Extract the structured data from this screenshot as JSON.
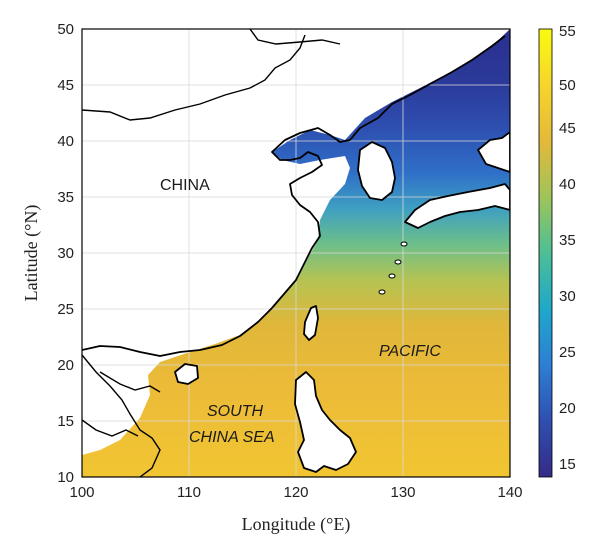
{
  "map": {
    "xlabel": "Longitude (°E)",
    "ylabel": "Latitude (°N)",
    "x_ticks": [
      "100",
      "110",
      "120",
      "130",
      "140"
    ],
    "y_ticks": [
      "10",
      "15",
      "20",
      "25",
      "30",
      "35",
      "40",
      "45",
      "50"
    ],
    "x_range": [
      100,
      140
    ],
    "y_range": [
      10,
      50
    ],
    "grid": true
  },
  "regions": {
    "china": "CHINA",
    "south_china_sea_line1": "SOUTH",
    "south_china_sea_line2": "CHINA SEA",
    "pacific": "PACIFIC"
  },
  "colorbar": {
    "ticks": [
      "15",
      "20",
      "25",
      "30",
      "35",
      "40",
      "45",
      "50",
      "55"
    ],
    "range": [
      13.5,
      55.5
    ],
    "colormap": [
      "#352a87",
      "#2f4fb0",
      "#2d7fd4",
      "#1fa8c9",
      "#4dbf96",
      "#9fc45a",
      "#e4b93a",
      "#f6d52c",
      "#f9fb0e"
    ]
  }
}
